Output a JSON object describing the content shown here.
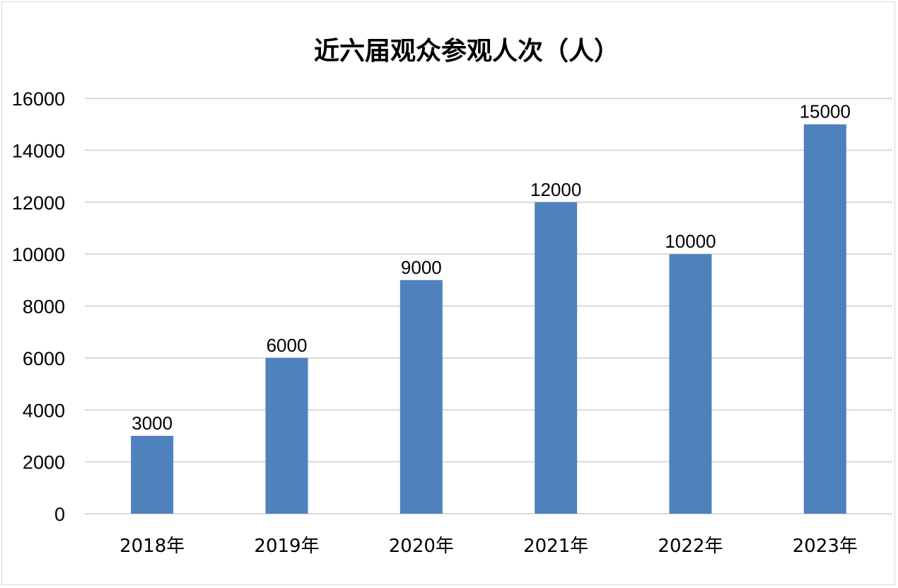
{
  "chart_data": {
    "type": "bar",
    "title": "近六届观众参观人次（人）",
    "categories": [
      "2018年",
      "2019年",
      "2020年",
      "2021年",
      "2022年",
      "2023年"
    ],
    "values": [
      3000,
      6000,
      9000,
      12000,
      10000,
      15000
    ],
    "data_labels": [
      "3000",
      "6000",
      "9000",
      "12000",
      "10000",
      "15000"
    ],
    "y_ticks": [
      "0",
      "2000",
      "4000",
      "6000",
      "8000",
      "10000",
      "12000",
      "14000",
      "16000"
    ],
    "ylim": [
      0,
      16000
    ],
    "xlabel": "",
    "ylabel": "",
    "grid": true,
    "legend": "none",
    "bar_color": "#4f81bd",
    "gridline_color": "#d9d9d9"
  }
}
